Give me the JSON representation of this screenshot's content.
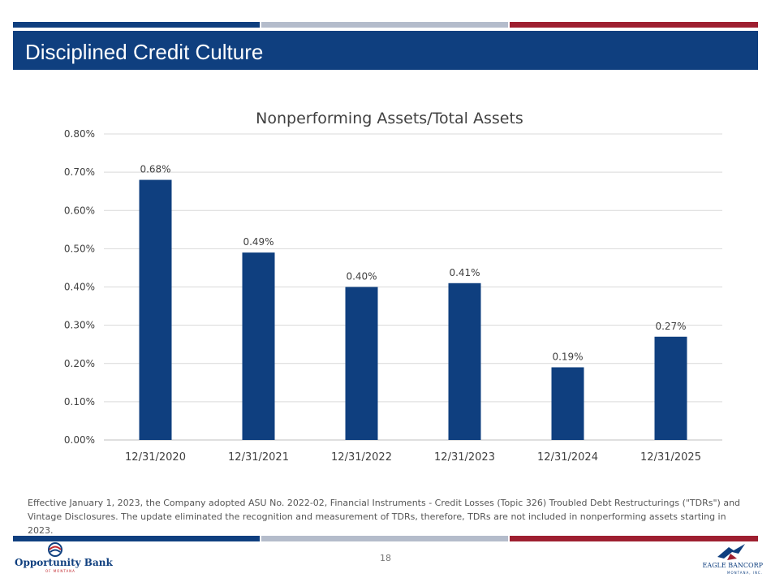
{
  "header": {
    "title": "Disciplined Credit Culture",
    "stripe_colors": [
      "#0f3f7f",
      "#b4bccb",
      "#9e1f30"
    ]
  },
  "chart_data": {
    "type": "bar",
    "title": "Nonperforming Assets/Total Assets",
    "xlabel": "",
    "ylabel": "",
    "categories": [
      "12/31/2020",
      "12/31/2021",
      "12/31/2022",
      "12/31/2023",
      "12/31/2024",
      "12/31/2025"
    ],
    "values": [
      0.68,
      0.49,
      0.4,
      0.41,
      0.19,
      0.27
    ],
    "data_labels": [
      "0.68%",
      "0.49%",
      "0.40%",
      "0.41%",
      "0.19%",
      "0.27%"
    ],
    "ylim": [
      0,
      0.8
    ],
    "yticks": [
      0,
      0.1,
      0.2,
      0.3,
      0.4,
      0.5,
      0.6,
      0.7,
      0.8
    ],
    "ytick_labels": [
      "0.00%",
      "0.10%",
      "0.20%",
      "0.30%",
      "0.40%",
      "0.50%",
      "0.60%",
      "0.70%",
      "0.80%"
    ],
    "grid": true,
    "bar_color": "#0f3f7f"
  },
  "footnote": "Effective January 1, 2023, the Company adopted ASU No. 2022-02, Financial Instruments - Credit Losses (Topic 326) Troubled Debt Restructurings (\"TDRs\") and Vintage Disclosures. The update eliminated the recognition and measurement of TDRs, therefore, TDRs are not included in nonperforming assets starting in 2023.",
  "footer": {
    "page_number": "18",
    "logo_left": {
      "name": "Opportunity Bank",
      "sub": "OF MONTANA"
    },
    "logo_right": {
      "name": "EAGLE BANCORP",
      "sub": "MONTANA, INC."
    }
  }
}
